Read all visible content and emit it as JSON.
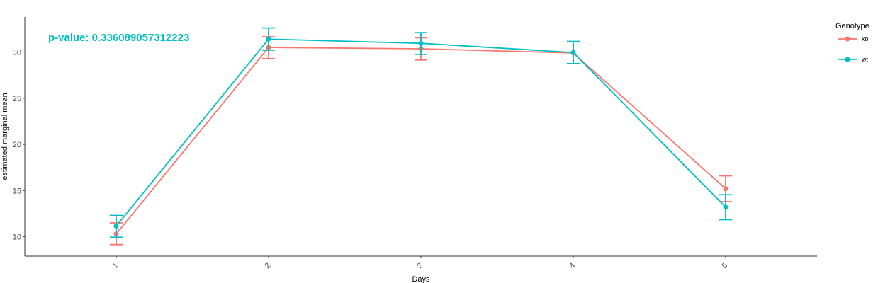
{
  "chart_data": {
    "type": "line",
    "xlabel": "Days",
    "ylabel": "estimated marginal mean",
    "categories": [
      "1",
      "2",
      "3",
      "4",
      "5"
    ],
    "y_ticks": [
      10,
      15,
      20,
      25,
      30
    ],
    "ylim": [
      7.9,
      33.8
    ],
    "grid": false,
    "legend_title": "Genotype",
    "legend_position": "right",
    "annotation": "p-value: 0.336089057312223",
    "annotation_color": "#00BFC4",
    "series": [
      {
        "name": "ko",
        "color": "#F8766D",
        "values": [
          10.3,
          30.5,
          30.35,
          29.9,
          15.2
        ],
        "lower": [
          9.15,
          29.3,
          29.15,
          28.75,
          13.8
        ],
        "upper": [
          11.5,
          31.65,
          31.55,
          31.1,
          16.6
        ]
      },
      {
        "name": "wt",
        "color": "#00BFC4",
        "values": [
          11.15,
          31.4,
          30.95,
          29.95,
          13.2
        ],
        "lower": [
          9.95,
          30.2,
          29.75,
          28.75,
          11.85
        ],
        "upper": [
          12.3,
          32.6,
          32.1,
          31.15,
          14.55
        ]
      }
    ]
  }
}
